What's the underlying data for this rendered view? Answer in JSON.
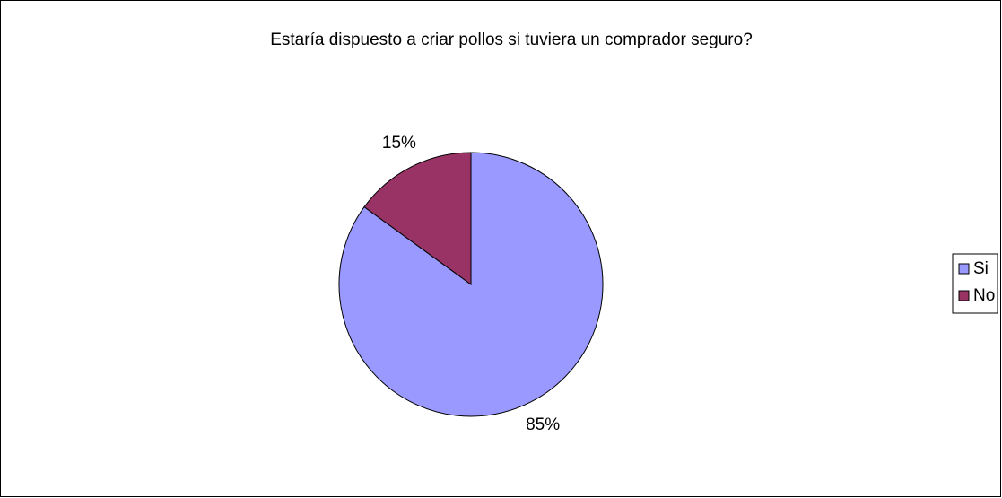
{
  "chart_data": {
    "type": "pie",
    "title": "Estaría dispuesto a criar pollos si tuviera un comprador seguro?",
    "categories": [
      "Si",
      "No"
    ],
    "values": [
      85,
      15
    ],
    "value_labels": [
      "85%",
      "15%"
    ],
    "colors": [
      "#9999ff",
      "#993366"
    ],
    "legend": "right"
  }
}
